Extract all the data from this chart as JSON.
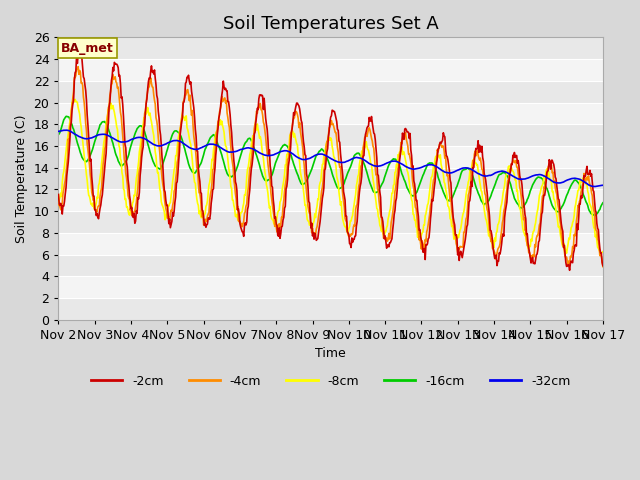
{
  "title": "Soil Temperatures Set A",
  "xlabel": "Time",
  "ylabel": "Soil Temperature (C)",
  "ylim": [
    0,
    26
  ],
  "xlim": [
    0,
    360
  ],
  "xtick_positions": [
    0,
    24,
    48,
    72,
    96,
    120,
    144,
    168,
    192,
    216,
    240,
    264,
    288,
    312,
    336,
    360
  ],
  "xtick_labels": [
    "Nov 2",
    "Nov 3",
    "Nov 4",
    "Nov 5",
    "Nov 6",
    "Nov 7",
    "Nov 8",
    "Nov 9",
    "Nov 10",
    "Nov 11",
    "Nov 12",
    "Nov 13",
    "Nov 14",
    "Nov 15",
    "Nov 16",
    "Nov 17"
  ],
  "ytick_positions": [
    0,
    2,
    4,
    6,
    8,
    10,
    12,
    14,
    16,
    18,
    20,
    22,
    24,
    26
  ],
  "line_colors": {
    "-2cm": "#cc0000",
    "-4cm": "#ff8c00",
    "-8cm": "#ffff00",
    "-16cm": "#00cc00",
    "-32cm": "#0000ee"
  },
  "legend_labels": [
    "-2cm",
    "-4cm",
    "-8cm",
    "-16cm",
    "-32cm"
  ],
  "annotation_text": "BA_met",
  "annotation_box_facecolor": "#ffffcc",
  "annotation_box_edgecolor": "#999900",
  "band_colors": [
    "#e8e8e8",
    "#f4f4f4"
  ],
  "fig_facecolor": "#d8d8d8",
  "title_fontsize": 13,
  "axis_label_fontsize": 9,
  "tick_fontsize": 9,
  "legend_fontsize": 9,
  "linewidth": 1.2
}
